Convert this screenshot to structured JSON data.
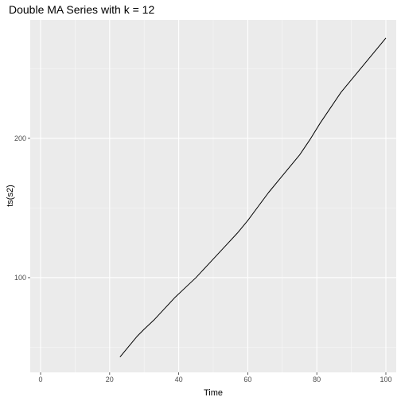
{
  "chart_data": {
    "type": "line",
    "title": "Double MA Series with k = 12",
    "xlabel": "Time",
    "ylabel": "ts(s2)",
    "xlim": [
      -3,
      103
    ],
    "ylim": [
      32,
      285
    ],
    "x_ticks": [
      0,
      20,
      40,
      60,
      80,
      100
    ],
    "y_ticks": [
      100,
      200
    ],
    "grid": true,
    "colors": {
      "panel": "#EBEBEB",
      "grid_major": "#FFFFFF",
      "line": "#000000",
      "tick_text": "#4D4D4D"
    },
    "series": [
      {
        "x": [
          23,
          24,
          26,
          28,
          30,
          33,
          36,
          39,
          42,
          45,
          48,
          51,
          54,
          57,
          60,
          63,
          66,
          69,
          72,
          75,
          78,
          81,
          84,
          87,
          90,
          93,
          96,
          99,
          100
        ],
        "y": [
          43,
          46,
          52,
          58,
          63,
          70,
          78,
          86,
          93,
          100,
          108,
          116,
          124,
          132,
          141,
          151,
          161,
          170,
          179,
          188,
          199,
          211,
          222,
          233,
          242,
          251,
          260,
          269,
          272
        ]
      }
    ]
  }
}
